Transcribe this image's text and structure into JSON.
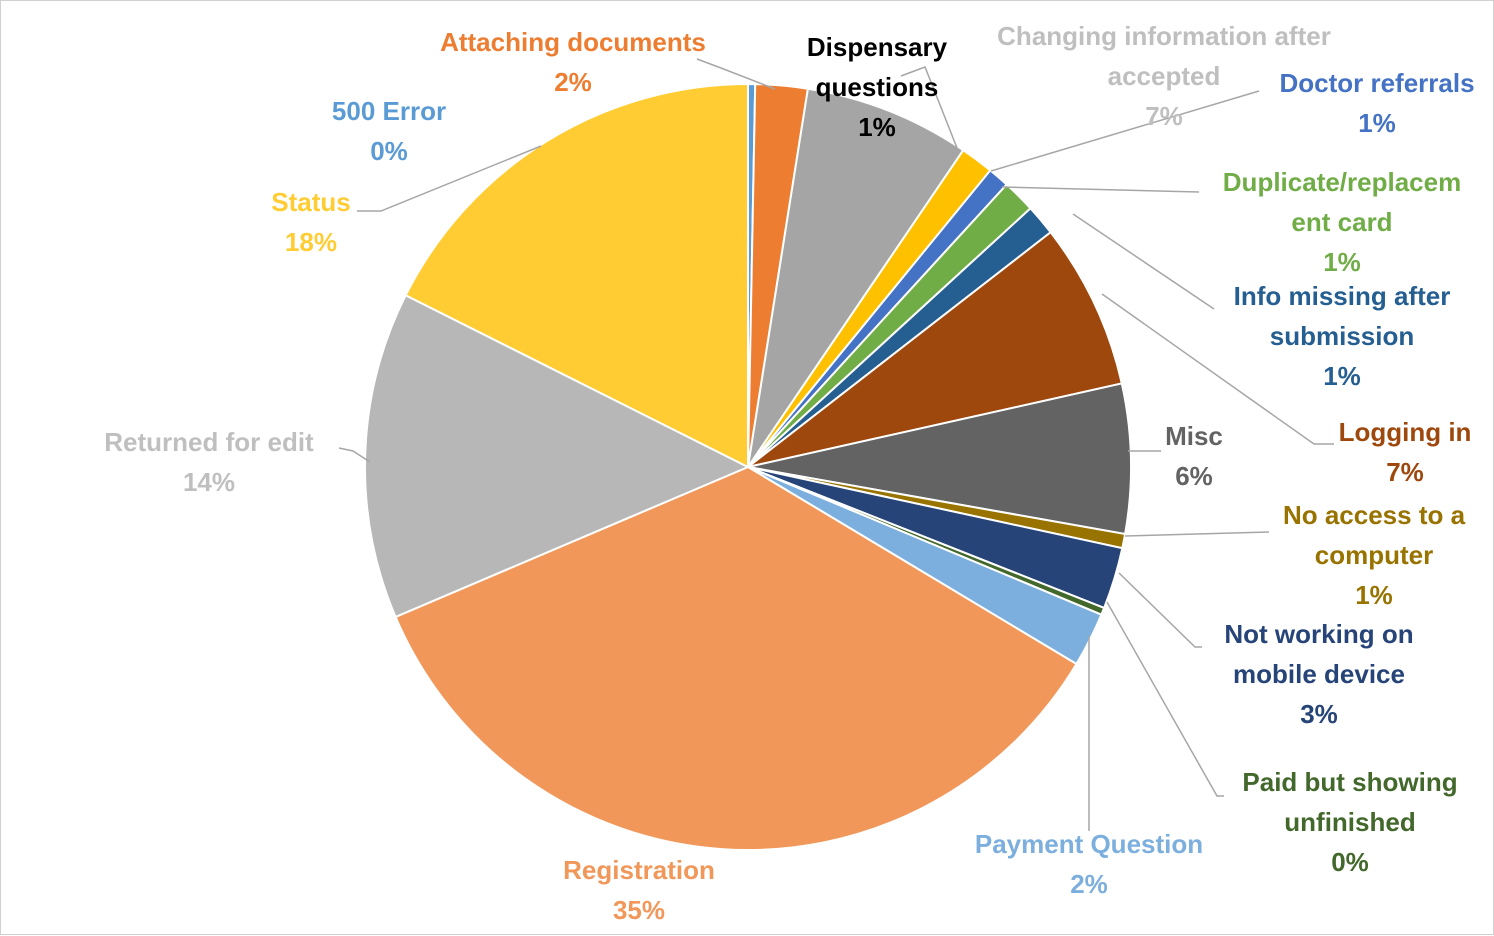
{
  "chart_data": {
    "type": "pie",
    "start_angle_deg": 0,
    "direction": "clockwise",
    "legend": "none",
    "slices": [
      {
        "label": "500 Error",
        "lines": [
          "500 Error"
        ],
        "value": 0.3,
        "display": "0%",
        "color": "#5b9bd5",
        "label_color": "#5b9bd5"
      },
      {
        "label": "Attaching documents",
        "lines": [
          "Attaching documents"
        ],
        "value": 2.2,
        "display": "2%",
        "color": "#ed7d31",
        "label_color": "#ed7d31"
      },
      {
        "label": "Changing information after accepted",
        "lines": [
          "Changing information after",
          "accepted"
        ],
        "value": 7.0,
        "display": "7%",
        "color": "#a5a5a5",
        "label_color": "#bfbfbf"
      },
      {
        "label": "Dispensary questions",
        "lines": [
          "Dispensary",
          "questions"
        ],
        "value": 1.4,
        "display": "1%",
        "color": "#ffc000",
        "label_color": "#000000"
      },
      {
        "label": "Doctor referrals",
        "lines": [
          "Doctor referrals"
        ],
        "value": 0.9,
        "display": "1%",
        "color": "#4472c4",
        "label_color": "#4472c4"
      },
      {
        "label": "Duplicate/replacement card",
        "lines": [
          "Duplicate/replacem",
          "ent card"
        ],
        "value": 1.4,
        "display": "1%",
        "color": "#70ad47",
        "label_color": "#70ad47"
      },
      {
        "label": "Info missing after submission",
        "lines": [
          "Info missing after",
          "submission"
        ],
        "value": 1.3,
        "display": "1%",
        "color": "#255e91",
        "label_color": "#255e91"
      },
      {
        "label": "Logging in",
        "lines": [
          "Logging in"
        ],
        "value": 7.0,
        "display": "7%",
        "color": "#9e480e",
        "label_color": "#9e480e"
      },
      {
        "label": "Misc",
        "lines": [
          "Misc"
        ],
        "value": 6.3,
        "display": "6%",
        "color": "#636363",
        "label_color": "#636363"
      },
      {
        "label": "No access to a computer",
        "lines": [
          "No access to a",
          "computer"
        ],
        "value": 0.6,
        "display": "1%",
        "color": "#997300",
        "label_color": "#997300"
      },
      {
        "label": "Not working on mobile device",
        "lines": [
          "Not working on",
          "mobile device"
        ],
        "value": 2.6,
        "display": "3%",
        "color": "#264478",
        "label_color": "#264478"
      },
      {
        "label": "Paid but showing unfinished",
        "lines": [
          "Paid but showing",
          "unfinished"
        ],
        "value": 0.3,
        "display": "0%",
        "color": "#43682b",
        "label_color": "#43682b"
      },
      {
        "label": "Payment Question",
        "lines": [
          "Payment Question"
        ],
        "value": 2.3,
        "display": "2%",
        "color": "#7cafdd",
        "label_color": "#7cafdd"
      },
      {
        "label": "Registration",
        "lines": [
          "Registration"
        ],
        "value": 35.0,
        "display": "35%",
        "color": "#f1975a",
        "label_color": "#f1975a"
      },
      {
        "label": "Returned for edit",
        "lines": [
          "Returned for edit"
        ],
        "value": 13.8,
        "display": "14%",
        "color": "#b7b7b7",
        "label_color": "#bfbfbf"
      },
      {
        "label": "Status",
        "lines": [
          "Status"
        ],
        "value": 17.6,
        "display": "18%",
        "color": "#ffcd33",
        "label_color": "#ffcd33"
      }
    ]
  }
}
